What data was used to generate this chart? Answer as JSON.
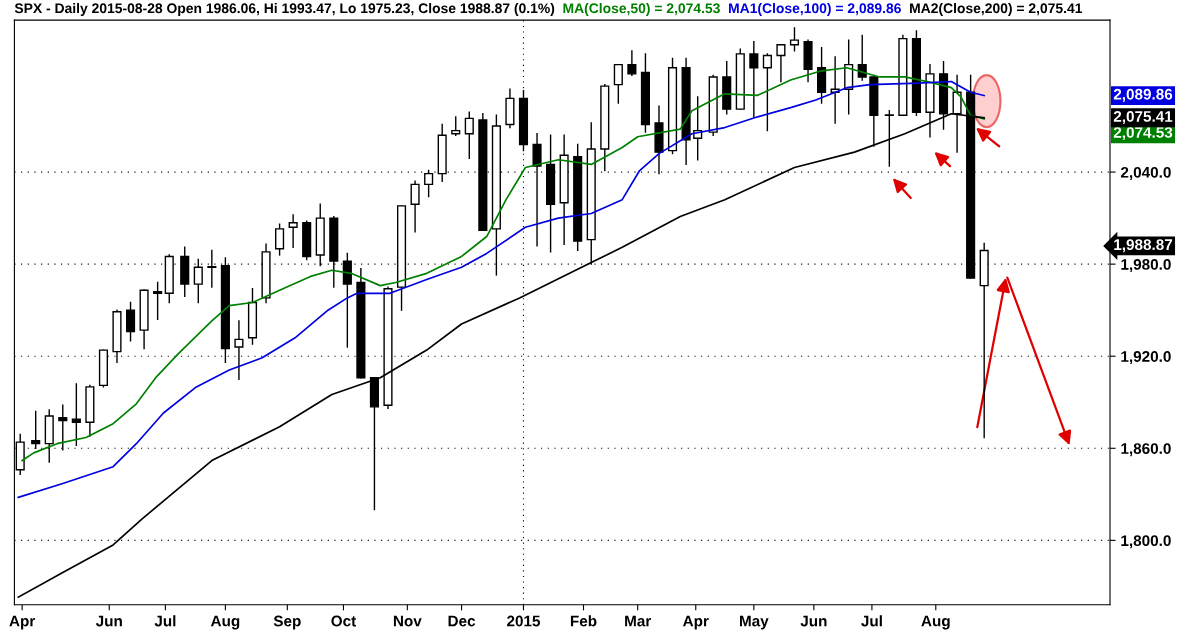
{
  "chart_data": {
    "type": "candlestick",
    "title": "SPX - Daily 2015-08-28 Open 1986.06, Hi 1993.47, Lo 1975.23, Close 1988.87 (0.1%)",
    "x": [
      "2014-04-17",
      "2014-04-25",
      "2014-05-02",
      "2014-05-09",
      "2014-05-16",
      "2014-05-23",
      "2014-05-30",
      "2014-06-06",
      "2014-06-13",
      "2014-06-20",
      "2014-06-27",
      "2014-07-03",
      "2014-07-11",
      "2014-07-18",
      "2014-07-25",
      "2014-08-01",
      "2014-08-08",
      "2014-08-15",
      "2014-08-22",
      "2014-08-29",
      "2014-09-05",
      "2014-09-12",
      "2014-09-19",
      "2014-09-26",
      "2014-10-03",
      "2014-10-10",
      "2014-10-17",
      "2014-10-24",
      "2014-10-31",
      "2014-11-07",
      "2014-11-14",
      "2014-11-21",
      "2014-11-28",
      "2014-12-05",
      "2014-12-12",
      "2014-12-19",
      "2014-12-26",
      "2015-01-02",
      "2015-01-09",
      "2015-01-16",
      "2015-01-23",
      "2015-01-30",
      "2015-02-06",
      "2015-02-13",
      "2015-02-20",
      "2015-02-27",
      "2015-03-06",
      "2015-03-13",
      "2015-03-20",
      "2015-03-27",
      "2015-04-02",
      "2015-04-10",
      "2015-04-17",
      "2015-04-24",
      "2015-05-01",
      "2015-05-08",
      "2015-05-15",
      "2015-05-22",
      "2015-05-29",
      "2015-06-05",
      "2015-06-12",
      "2015-06-19",
      "2015-06-26",
      "2015-07-02",
      "2015-07-10",
      "2015-07-17",
      "2015-07-24",
      "2015-07-31",
      "2015-08-07",
      "2015-08-14",
      "2015-08-21",
      "2015-08-28"
    ],
    "ohlc": [
      [
        1846,
        1869,
        1843,
        1864
      ],
      [
        1865,
        1884,
        1860,
        1863
      ],
      [
        1863,
        1885,
        1851,
        1881
      ],
      [
        1880,
        1888,
        1859,
        1878
      ],
      [
        1879,
        1902,
        1862,
        1877
      ],
      [
        1877,
        1901,
        1868,
        1900
      ],
      [
        1901,
        1924,
        1900,
        1924
      ],
      [
        1923,
        1950,
        1916,
        1949
      ],
      [
        1950,
        1955,
        1930,
        1936
      ],
      [
        1937,
        1963,
        1925,
        1963
      ],
      [
        1962,
        1968,
        1944,
        1961
      ],
      [
        1961,
        1986,
        1955,
        1985
      ],
      [
        1985,
        1991,
        1959,
        1967
      ],
      [
        1967,
        1983,
        1955,
        1978
      ],
      [
        1978,
        1989,
        1965,
        1978
      ],
      [
        1979,
        1984,
        1916,
        1925
      ],
      [
        1926,
        1943,
        1905,
        1931
      ],
      [
        1932,
        1964,
        1928,
        1955
      ],
      [
        1958,
        1993,
        1955,
        1988
      ],
      [
        1990,
        2006,
        1986,
        2003
      ],
      [
        2004,
        2012,
        1991,
        2007
      ],
      [
        2007,
        2008,
        1983,
        1985
      ],
      [
        1986,
        2019,
        1979,
        2010
      ],
      [
        2010,
        2011,
        1965,
        1982
      ],
      [
        1982,
        1987,
        1926,
        1967
      ],
      [
        1968,
        1977,
        1906,
        1906
      ],
      [
        1906,
        1906,
        1820,
        1887
      ],
      [
        1888,
        1965,
        1886,
        1964
      ],
      [
        1965,
        2018,
        1950,
        2018
      ],
      [
        2019,
        2034,
        2001,
        2032
      ],
      [
        2032,
        2041,
        2024,
        2039
      ],
      [
        2039,
        2071,
        2034,
        2064
      ],
      [
        2065,
        2076,
        2064,
        2067
      ],
      [
        2065,
        2079,
        2049,
        2075
      ],
      [
        2074,
        2078,
        2002,
        2002
      ],
      [
        2003,
        2077,
        1973,
        2070
      ],
      [
        2071,
        2094,
        2069,
        2088
      ],
      [
        2088,
        2093,
        2054,
        2058
      ],
      [
        2058,
        2065,
        1992,
        2044
      ],
      [
        2045,
        2064,
        1988,
        2019
      ],
      [
        2020,
        2064,
        1993,
        2051
      ],
      [
        2050,
        2058,
        1989,
        1995
      ],
      [
        1996,
        2072,
        1980,
        2055
      ],
      [
        2055,
        2097,
        2041,
        2096
      ],
      [
        2097,
        2110,
        2085,
        2110
      ],
      [
        2110,
        2119,
        2103,
        2104
      ],
      [
        2105,
        2117,
        2066,
        2071
      ],
      [
        2072,
        2083,
        2039,
        2053
      ],
      [
        2054,
        2114,
        2052,
        2108
      ],
      [
        2108,
        2114,
        2045,
        2061
      ],
      [
        2062,
        2089,
        2048,
        2067
      ],
      [
        2066,
        2103,
        2064,
        2102
      ],
      [
        2102,
        2112,
        2078,
        2081
      ],
      [
        2081,
        2120,
        2081,
        2117
      ],
      [
        2117,
        2125,
        2076,
        2108
      ],
      [
        2108,
        2117,
        2067,
        2116
      ],
      [
        2116,
        2123,
        2099,
        2123
      ],
      [
        2123,
        2134,
        2119,
        2126
      ],
      [
        2125,
        2126,
        2099,
        2107
      ],
      [
        2108,
        2121,
        2085,
        2092
      ],
      [
        2092,
        2115,
        2072,
        2094
      ],
      [
        2094,
        2126,
        2078,
        2110
      ],
      [
        2110,
        2129,
        2100,
        2102
      ],
      [
        2102,
        2102,
        2057,
        2077
      ],
      [
        2077,
        2080,
        2044,
        2077
      ],
      [
        2077,
        2129,
        2077,
        2127
      ],
      [
        2127,
        2132,
        2077,
        2079
      ],
      [
        2079,
        2110,
        2063,
        2104
      ],
      [
        2104,
        2112,
        2068,
        2078
      ],
      [
        2078,
        2103,
        2053,
        2092
      ],
      [
        2092,
        2103,
        1971,
        1971
      ],
      [
        1966,
        1993.47,
        1867,
        1988.87
      ]
    ],
    "series": [
      {
        "type": "line",
        "name": "MA(Close,50) = 2,074.53",
        "color": "#008000",
        "x": [
          "2014-04-18",
          "2014-04-24",
          "2014-05-06",
          "2014-05-21",
          "2014-06-04",
          "2014-06-16",
          "2014-06-26",
          "2014-07-08",
          "2014-07-25",
          "2014-08-03",
          "2014-08-15",
          "2014-08-29",
          "2014-09-14",
          "2014-09-25",
          "2014-10-05",
          "2014-10-20",
          "2014-10-28",
          "2014-11-13",
          "2014-12-01",
          "2014-12-14",
          "2014-12-24",
          "2015-01-03",
          "2015-01-20",
          "2015-02-06",
          "2015-02-22",
          "2015-03-02",
          "2015-03-24",
          "2015-03-30",
          "2015-04-16",
          "2015-05-03",
          "2015-05-20",
          "2015-06-05",
          "2015-06-18",
          "2015-07-05",
          "2015-07-18",
          "2015-08-02",
          "2015-08-11",
          "2015-08-16",
          "2015-08-21",
          "2015-08-28"
        ],
        "values": [
          1852,
          1857,
          1863,
          1867,
          1876,
          1889,
          1906,
          1922,
          1943,
          1953,
          1955,
          1963,
          1972,
          1976,
          1974,
          1966,
          1968,
          1974,
          1985,
          1998,
          2022,
          2043,
          2048,
          2045,
          2056,
          2063,
          2068,
          2080,
          2091,
          2090,
          2100,
          2106,
          2108,
          2102,
          2102,
          2098,
          2095,
          2089,
          2077,
          2074.53
        ]
      },
      {
        "type": "line",
        "name": "MA1(Close,100) = 2,089.86",
        "color": "#0000e0",
        "x": [
          "2014-04-16",
          "2014-05-09",
          "2014-06-04",
          "2014-06-16",
          "2014-06-30",
          "2014-07-17",
          "2014-08-03",
          "2014-08-20",
          "2014-09-06",
          "2014-09-23",
          "2014-10-03",
          "2014-10-08",
          "2014-10-25",
          "2014-11-13",
          "2014-12-01",
          "2014-12-14",
          "2015-01-03",
          "2015-01-20",
          "2015-02-06",
          "2015-02-22",
          "2015-03-03",
          "2015-03-13",
          "2015-03-30",
          "2015-04-16",
          "2015-05-03",
          "2015-05-20",
          "2015-06-02",
          "2015-06-18",
          "2015-06-30",
          "2015-07-25",
          "2015-08-11",
          "2015-08-21",
          "2015-08-28"
        ],
        "values": [
          1828,
          1837,
          1848,
          1863,
          1883,
          1900,
          1911,
          1919,
          1932,
          1950,
          1958,
          1961,
          1961,
          1970,
          1978,
          1987,
          2004,
          2010,
          2013,
          2022,
          2041,
          2052,
          2065,
          2069,
          2076,
          2082,
          2087,
          2095,
          2097,
          2098,
          2099,
          2092,
          2089.86
        ]
      },
      {
        "type": "line",
        "name": "MA2(Close,200) = 2,075.41",
        "color": "#000000",
        "x": [
          "2014-04-16",
          "2014-05-09",
          "2014-06-04",
          "2014-06-19",
          "2014-07-25",
          "2014-08-29",
          "2014-09-25",
          "2014-10-20",
          "2014-11-13",
          "2014-12-01",
          "2014-12-31",
          "2015-02-06",
          "2015-02-22",
          "2015-03-24",
          "2015-04-16",
          "2015-05-22",
          "2015-06-22",
          "2015-07-18",
          "2015-08-11",
          "2015-08-28"
        ],
        "values": [
          1763,
          1779,
          1797,
          1814,
          1852,
          1874,
          1895,
          1906,
          1924,
          1941,
          1958,
          1981,
          1991,
          2011,
          2022,
          2043,
          2053,
          2065,
          2078,
          2075.41
        ]
      }
    ],
    "annotations": [
      "2,074.53",
      "2,089.86",
      "2,075.41",
      "1,988.87"
    ],
    "xlim": [
      "2014-04-14",
      "2015-11-01"
    ],
    "xticks": [
      {
        "value": "2014-04-18",
        "label": "Apr"
      },
      {
        "value": "2014-06-02",
        "label": "Jun"
      },
      {
        "value": "2014-07-01",
        "label": "Jul"
      },
      {
        "value": "2014-08-01",
        "label": "Aug"
      },
      {
        "value": "2014-09-02",
        "label": "Sep"
      },
      {
        "value": "2014-10-01",
        "label": "Oct"
      },
      {
        "value": "2014-11-03",
        "label": "Nov"
      },
      {
        "value": "2014-12-01",
        "label": "Dec"
      },
      {
        "value": "2015-01-02",
        "label": "2015"
      },
      {
        "value": "2015-02-02",
        "label": "Feb"
      },
      {
        "value": "2015-03-02",
        "label": "Mar"
      },
      {
        "value": "2015-04-01",
        "label": "Apr"
      },
      {
        "value": "2015-05-01",
        "label": "May"
      },
      {
        "value": "2015-06-01",
        "label": "Jun"
      },
      {
        "value": "2015-07-01",
        "label": "Jul"
      },
      {
        "value": "2015-08-03",
        "label": "Aug"
      }
    ],
    "ylim": [
      1758,
      2139
    ],
    "yticks": [
      {
        "value": 1800,
        "label": "1,800.0"
      },
      {
        "value": 1860,
        "label": "1,860.0"
      },
      {
        "value": 1920,
        "label": "1,920.0"
      },
      {
        "value": 1980,
        "label": "1,980.0"
      },
      {
        "value": 2040,
        "label": "2,040.0"
      }
    ],
    "ref_lines": [
      {
        "axis": "x",
        "value": "2015-01-02",
        "color": "#000000",
        "line_style": "dotted"
      }
    ],
    "grid": "y",
    "legend": "top"
  }
}
